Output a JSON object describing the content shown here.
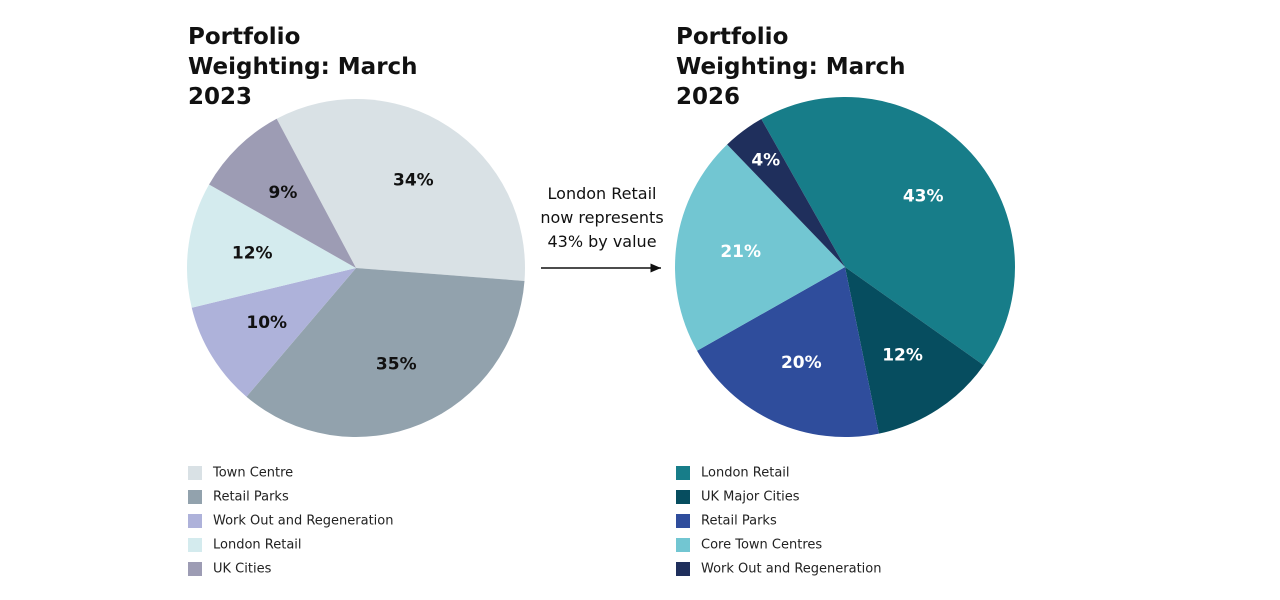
{
  "chart_data": [
    {
      "type": "pie",
      "title": "Portfolio Weighting: March 2023",
      "categories": [
        "Town Centre",
        "Retail Parks",
        "Work Out and Regeneration",
        "London Retail",
        "UK Cities"
      ],
      "values": [
        34,
        35,
        10,
        12,
        9
      ],
      "value_labels": [
        "34%",
        "35%",
        "10%",
        "12%",
        "9%"
      ],
      "colors": [
        "#d9e1e5",
        "#92a2ad",
        "#aeb2da",
        "#d4ebee",
        "#9d9cb4"
      ],
      "label_color": "#111111"
    },
    {
      "type": "pie",
      "title": "Portfolio Weighting: March 2026",
      "categories": [
        "London Retail",
        "UK Major Cities",
        "Retail Parks",
        "Core Town Centres",
        "Work Out and Regeneration"
      ],
      "values": [
        43,
        12,
        20,
        21,
        4
      ],
      "value_labels": [
        "43%",
        "12%",
        "20%",
        "21%",
        "4%"
      ],
      "colors": [
        "#177d89",
        "#064d5f",
        "#2f4d9c",
        "#72c6d2",
        "#1f2f5c"
      ],
      "label_color": "#ffffff"
    }
  ],
  "annotation": "London Retail now represents 43% by value"
}
